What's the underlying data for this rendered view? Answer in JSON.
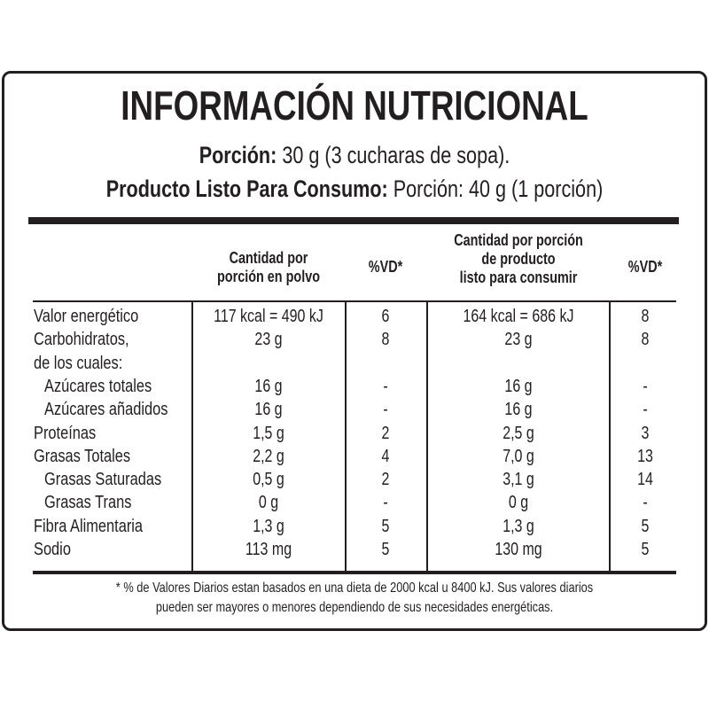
{
  "title": "INFORMACIÓN NUTRICIONAL",
  "portion_line": {
    "label": "Porción:",
    "value": "30 g (3 cucharas de sopa)."
  },
  "ready_line": {
    "label": "Producto Listo Para Consumo:",
    "value": "Porción: 40 g (1 porción)"
  },
  "headers": {
    "col1": [
      "Cantidad por",
      "porción en polvo"
    ],
    "col2": "%VD*",
    "col3": [
      "Cantidad por porción",
      "de producto",
      "listo para consumir"
    ],
    "col4": "%VD*"
  },
  "rows": [
    {
      "label": "Valor energético",
      "indent": false,
      "c1": "117 kcal = 490 kJ",
      "c2": "6",
      "c3": "164 kcal = 686 kJ",
      "c4": "8"
    },
    {
      "label": "Carbohidratos,",
      "indent": false,
      "c1": "23 g",
      "c2": "8",
      "c3": "23 g",
      "c4": "8"
    },
    {
      "label": "de los cuales:",
      "indent": false,
      "c1": "",
      "c2": "",
      "c3": "",
      "c4": ""
    },
    {
      "label": "Azúcares totales",
      "indent": true,
      "c1": "16 g",
      "c2": "-",
      "c3": "16 g",
      "c4": "-"
    },
    {
      "label": "Azúcares añadidos",
      "indent": true,
      "c1": "16 g",
      "c2": "-",
      "c3": "16 g",
      "c4": "-"
    },
    {
      "label": "Proteínas",
      "indent": false,
      "c1": "1,5 g",
      "c2": "2",
      "c3": "2,5 g",
      "c4": "3"
    },
    {
      "label": "Grasas Totales",
      "indent": false,
      "c1": "2,2 g",
      "c2": "4",
      "c3": "7,0 g",
      "c4": "13"
    },
    {
      "label": "Grasas Saturadas",
      "indent": true,
      "c1": "0,5 g",
      "c2": "2",
      "c3": "3,1 g",
      "c4": "14"
    },
    {
      "label": "Grasas Trans",
      "indent": true,
      "c1": "0 g",
      "c2": "-",
      "c3": "0 g",
      "c4": "-"
    },
    {
      "label": "Fibra Alimentaria",
      "indent": false,
      "c1": "1,3 g",
      "c2": "5",
      "c3": "1,3 g",
      "c4": "5"
    },
    {
      "label": "Sodio",
      "indent": false,
      "c1": "113 mg",
      "c2": "5",
      "c3": "130 mg",
      "c4": "5"
    }
  ],
  "footnote": [
    "* % de Valores Diarios estan basados en una dieta de 2000 kcal u 8400 kJ. Sus valores diarios",
    "pueden ser mayores o menores dependiendo de sus necesidades energéticas."
  ]
}
